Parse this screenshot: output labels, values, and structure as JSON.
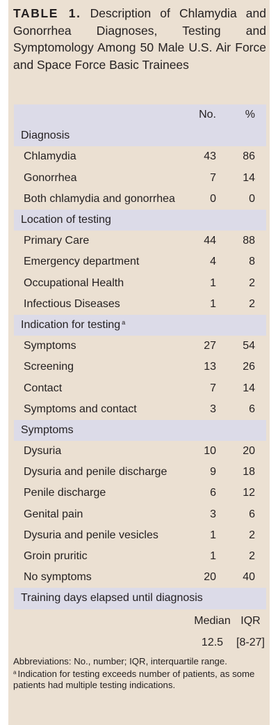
{
  "title": {
    "label": "TABLE 1.",
    "text": "Description of Chlamydia and Gonorrhea Diagnoses, Testing and Symptomology Among 50 Male U.S. Air Force and Space Force Basic Trainees"
  },
  "table": {
    "headers": {
      "label": "",
      "no": "No.",
      "pct": "%"
    },
    "sections": [
      {
        "title": "Diagnosis",
        "sup": "",
        "rows": [
          {
            "label": "Chlamydia",
            "no": "43",
            "pct": "86"
          },
          {
            "label": "Gonorrhea",
            "no": "7",
            "pct": "14"
          },
          {
            "label": "Both chlamydia and gonorrhea",
            "no": "0",
            "pct": "0"
          }
        ]
      },
      {
        "title": "Location of testing",
        "sup": "",
        "rows": [
          {
            "label": "Primary Care",
            "no": "44",
            "pct": "88"
          },
          {
            "label": "Emergency department",
            "no": "4",
            "pct": "8"
          },
          {
            "label": "Occupational Health",
            "no": "1",
            "pct": "2"
          },
          {
            "label": "Infectious Diseases",
            "no": "1",
            "pct": "2"
          }
        ]
      },
      {
        "title": "Indication for testing",
        "sup": "a",
        "rows": [
          {
            "label": "Symptoms",
            "no": "27",
            "pct": "54"
          },
          {
            "label": "Screening",
            "no": "13",
            "pct": "26"
          },
          {
            "label": "Contact",
            "no": "7",
            "pct": "14"
          },
          {
            "label": "Symptoms and contact",
            "no": "3",
            "pct": "6"
          }
        ]
      },
      {
        "title": "Symptoms",
        "sup": "",
        "rows": [
          {
            "label": "Dysuria",
            "no": "10",
            "pct": "20"
          },
          {
            "label": "Dysuria and penile discharge",
            "no": "9",
            "pct": "18"
          },
          {
            "label": "Penile discharge",
            "no": "6",
            "pct": "12"
          },
          {
            "label": "Genital pain",
            "no": "3",
            "pct": "6"
          },
          {
            "label": "Dysuria and penile vesicles",
            "no": "1",
            "pct": "2"
          },
          {
            "label": "Groin pruritic",
            "no": "1",
            "pct": "2"
          },
          {
            "label": "No symptoms",
            "no": "20",
            "pct": "40"
          }
        ]
      },
      {
        "title": "Training days elapsed until diagnosis",
        "sup": "",
        "rows": []
      }
    ],
    "training_stats": {
      "median_label": "Median",
      "iqr_label": "IQR",
      "median": "12.5",
      "iqr": "[8-27]"
    }
  },
  "notes": {
    "abbreviations": "Abbreviations: No., number; IQR, interquartile range.",
    "footnote_mark": "a",
    "footnote": "Indication for testing exceeds number of patients, as some patients had multiple testing indications."
  }
}
